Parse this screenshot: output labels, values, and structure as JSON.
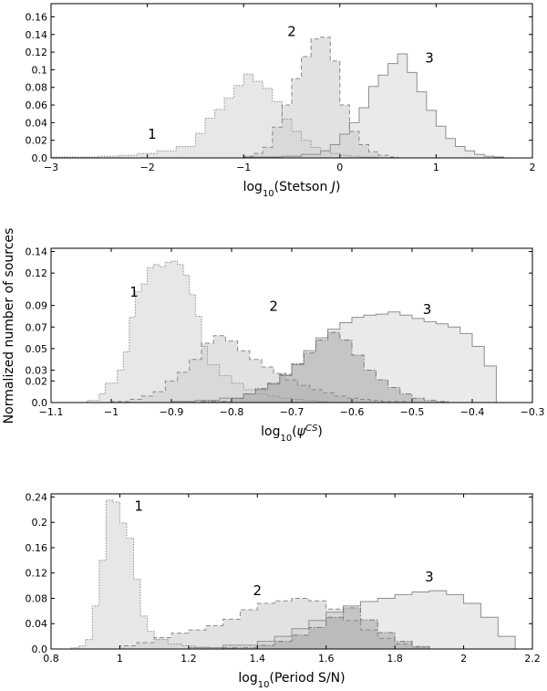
{
  "figure": {
    "ylabel": "Normalized number of sources"
  },
  "chart_data": [
    {
      "type": "histogram",
      "xlabel_parts": [
        "log",
        "10",
        "(Stetson ",
        "J",
        ")"
      ],
      "xlim": [
        -3,
        2
      ],
      "ylim": [
        0,
        0.175
      ],
      "xticks": [
        -3,
        -2,
        -1,
        0,
        1,
        2
      ],
      "yticks": [
        0.0,
        0.02,
        0.04,
        0.06,
        0.08,
        0.1,
        0.12,
        0.14,
        0.16
      ],
      "ytick_labels": [
        "0.0",
        "0.02",
        "0.04",
        "0.06",
        "0.08",
        "0.1",
        "0.12",
        "0.14",
        "0.16"
      ],
      "series": [
        {
          "label": "1",
          "style": "dotted",
          "label_pos": [
            -1.95,
            0.022
          ],
          "edges": [
            -3.0,
            -2.5,
            -2.3,
            -2.1,
            -1.9,
            -1.7,
            -1.5,
            -1.4,
            -1.3,
            -1.2,
            -1.1,
            -1.0,
            -0.9,
            -0.8,
            -0.7,
            -0.6,
            -0.5,
            -0.4,
            -0.3,
            -0.2,
            -0.1,
            0.0,
            0.1,
            0.2,
            0.3,
            0.4,
            0.6
          ],
          "values": [
            0.001,
            0.002,
            0.003,
            0.005,
            0.008,
            0.013,
            0.028,
            0.045,
            0.055,
            0.068,
            0.082,
            0.095,
            0.087,
            0.079,
            0.064,
            0.044,
            0.03,
            0.02,
            0.012,
            0.008,
            0.005,
            0.003,
            0.002,
            0.001,
            0.001,
            0.0
          ]
        },
        {
          "label": "2",
          "style": "dashed",
          "label_pos": [
            -0.5,
            0.138
          ],
          "edges": [
            -1.0,
            -0.9,
            -0.8,
            -0.7,
            -0.6,
            -0.5,
            -0.4,
            -0.3,
            -0.2,
            -0.1,
            0.0,
            0.1,
            0.2,
            0.3,
            0.4,
            0.5,
            0.6,
            0.7
          ],
          "values": [
            0.002,
            0.005,
            0.012,
            0.035,
            0.06,
            0.09,
            0.115,
            0.135,
            0.137,
            0.11,
            0.06,
            0.03,
            0.015,
            0.007,
            0.003,
            0.001,
            0.0
          ]
        },
        {
          "label": "3",
          "style": "solid",
          "label_pos": [
            0.93,
            0.108
          ],
          "edges": [
            -1.0,
            -0.6,
            -0.4,
            -0.2,
            -0.1,
            0.0,
            0.1,
            0.2,
            0.3,
            0.4,
            0.5,
            0.6,
            0.7,
            0.8,
            0.9,
            1.0,
            1.1,
            1.2,
            1.3,
            1.4,
            1.5,
            1.6,
            1.7
          ],
          "values": [
            0.001,
            0.002,
            0.004,
            0.008,
            0.015,
            0.027,
            0.04,
            0.057,
            0.081,
            0.094,
            0.107,
            0.118,
            0.097,
            0.075,
            0.054,
            0.036,
            0.022,
            0.013,
            0.008,
            0.004,
            0.002,
            0.001
          ]
        }
      ]
    },
    {
      "type": "histogram",
      "xlabel_parts": [
        "log",
        "10",
        "(",
        "ψ",
        "CS",
        ")"
      ],
      "xlim": [
        -1.1,
        -0.3
      ],
      "ylim": [
        0,
        0.143
      ],
      "xticks": [
        -1.1,
        -1.0,
        -0.9,
        -0.8,
        -0.7,
        -0.6,
        -0.5,
        -0.4,
        -0.3
      ],
      "yticks": [
        0.0,
        0.02,
        0.03,
        0.05,
        0.07,
        0.09,
        0.12,
        0.14
      ],
      "ytick_labels": [
        "0.0",
        "0.02",
        "0.03",
        "0.05",
        "0.07",
        "0.09",
        "0.12",
        "0.14"
      ],
      "series": [
        {
          "label": "1",
          "style": "dotted",
          "label_pos": [
            -0.962,
            0.098
          ],
          "edges": [
            -1.04,
            -1.02,
            -1.01,
            -0.99,
            -0.98,
            -0.97,
            -0.96,
            -0.95,
            -0.94,
            -0.93,
            -0.92,
            -0.91,
            -0.9,
            -0.89,
            -0.88,
            -0.87,
            -0.86,
            -0.85,
            -0.84,
            -0.82,
            -0.8,
            -0.78,
            -0.76,
            -0.74,
            -0.72,
            -0.7,
            -0.68,
            -0.66,
            -0.64
          ],
          "values": [
            0.002,
            0.008,
            0.018,
            0.03,
            0.047,
            0.079,
            0.103,
            0.11,
            0.125,
            0.128,
            0.126,
            0.13,
            0.131,
            0.128,
            0.118,
            0.1,
            0.08,
            0.052,
            0.035,
            0.025,
            0.018,
            0.012,
            0.008,
            0.006,
            0.004,
            0.003,
            0.002,
            0.001
          ]
        },
        {
          "label": "2",
          "style": "dashed",
          "label_pos": [
            -0.73,
            0.085
          ],
          "edges": [
            -1.0,
            -0.97,
            -0.95,
            -0.93,
            -0.91,
            -0.89,
            -0.87,
            -0.85,
            -0.83,
            -0.81,
            -0.79,
            -0.77,
            -0.75,
            -0.73,
            -0.71,
            -0.69,
            -0.67,
            -0.65,
            -0.63,
            -0.61,
            -0.59,
            -0.57,
            -0.55,
            -0.53,
            -0.51,
            -0.49
          ],
          "values": [
            0.001,
            0.003,
            0.006,
            0.01,
            0.02,
            0.028,
            0.04,
            0.055,
            0.062,
            0.057,
            0.048,
            0.04,
            0.033,
            0.027,
            0.021,
            0.016,
            0.012,
            0.009,
            0.006,
            0.004,
            0.003,
            0.002,
            0.001,
            0.001,
            0.0
          ]
        },
        {
          "label": "3",
          "style": "solid",
          "label_pos": [
            -0.475,
            0.082
          ],
          "edges": [
            -0.9,
            -0.86,
            -0.82,
            -0.78,
            -0.76,
            -0.74,
            -0.72,
            -0.7,
            -0.68,
            -0.66,
            -0.64,
            -0.62,
            -0.6,
            -0.58,
            -0.56,
            -0.54,
            -0.52,
            -0.5,
            -0.48,
            -0.46,
            -0.44,
            -0.42,
            -0.4,
            -0.38,
            -0.36
          ],
          "values": [
            0.001,
            0.002,
            0.004,
            0.008,
            0.012,
            0.017,
            0.025,
            0.035,
            0.048,
            0.06,
            0.068,
            0.074,
            0.079,
            0.081,
            0.082,
            0.084,
            0.081,
            0.078,
            0.075,
            0.073,
            0.07,
            0.064,
            0.052,
            0.034
          ]
        },
        {
          "label": "",
          "style": "dashdot",
          "label_pos": [
            -0.6,
            0.0
          ],
          "edges": [
            -0.85,
            -0.8,
            -0.78,
            -0.76,
            -0.74,
            -0.72,
            -0.7,
            -0.68,
            -0.66,
            -0.64,
            -0.62,
            -0.6,
            -0.58,
            -0.56,
            -0.54,
            -0.52,
            -0.5,
            -0.48,
            -0.46,
            -0.44
          ],
          "values": [
            0.001,
            0.004,
            0.008,
            0.013,
            0.018,
            0.026,
            0.036,
            0.046,
            0.058,
            0.065,
            0.058,
            0.044,
            0.03,
            0.021,
            0.014,
            0.008,
            0.004,
            0.002,
            0.001
          ]
        }
      ]
    },
    {
      "type": "histogram",
      "xlabel_parts": [
        "log",
        "10",
        "(Period S/N)"
      ],
      "xlim": [
        0.8,
        2.2
      ],
      "ylim": [
        0,
        0.245
      ],
      "xticks": [
        0.8,
        1.0,
        1.2,
        1.4,
        1.6,
        1.8,
        2.0,
        2.2
      ],
      "yticks": [
        0.0,
        0.04,
        0.08,
        0.12,
        0.16,
        0.2,
        0.24
      ],
      "ytick_labels": [
        "0.0",
        "0.04",
        "0.08",
        "0.12",
        "0.16",
        "0.2",
        "0.24"
      ],
      "series": [
        {
          "label": "1",
          "style": "dotted",
          "label_pos": [
            1.055,
            0.218
          ],
          "edges": [
            0.86,
            0.88,
            0.9,
            0.92,
            0.94,
            0.96,
            0.98,
            1.0,
            1.02,
            1.04,
            1.06,
            1.08,
            1.1,
            1.14,
            1.18,
            1.22,
            1.26,
            1.3,
            1.34
          ],
          "values": [
            0.002,
            0.005,
            0.015,
            0.068,
            0.14,
            0.235,
            0.232,
            0.199,
            0.175,
            0.11,
            0.052,
            0.028,
            0.015,
            0.008,
            0.005,
            0.003,
            0.002,
            0.001
          ]
        },
        {
          "label": "2",
          "style": "dashed",
          "label_pos": [
            1.4,
            0.085
          ],
          "edges": [
            1.0,
            1.05,
            1.1,
            1.15,
            1.2,
            1.25,
            1.3,
            1.35,
            1.4,
            1.45,
            1.5,
            1.55,
            1.6,
            1.65,
            1.7,
            1.75,
            1.8,
            1.85,
            1.9
          ],
          "values": [
            0.005,
            0.01,
            0.018,
            0.025,
            0.03,
            0.037,
            0.047,
            0.062,
            0.072,
            0.076,
            0.08,
            0.076,
            0.063,
            0.045,
            0.03,
            0.017,
            0.008,
            0.003
          ]
        },
        {
          "label": "3",
          "style": "solid",
          "label_pos": [
            1.9,
            0.107
          ],
          "edges": [
            1.2,
            1.3,
            1.4,
            1.45,
            1.5,
            1.55,
            1.6,
            1.65,
            1.7,
            1.75,
            1.8,
            1.85,
            1.9,
            1.95,
            2.0,
            2.05,
            2.1,
            2.15
          ],
          "values": [
            0.002,
            0.006,
            0.012,
            0.02,
            0.032,
            0.045,
            0.058,
            0.068,
            0.075,
            0.08,
            0.086,
            0.09,
            0.092,
            0.086,
            0.072,
            0.05,
            0.02
          ]
        },
        {
          "label": "",
          "style": "dashdot",
          "label_pos": [
            1.6,
            0.0
          ],
          "edges": [
            1.3,
            1.4,
            1.45,
            1.5,
            1.55,
            1.6,
            1.65,
            1.7,
            1.75,
            1.8,
            1.85,
            1.9
          ],
          "values": [
            0.002,
            0.006,
            0.012,
            0.022,
            0.034,
            0.05,
            0.065,
            0.046,
            0.026,
            0.012,
            0.004
          ]
        }
      ]
    }
  ]
}
